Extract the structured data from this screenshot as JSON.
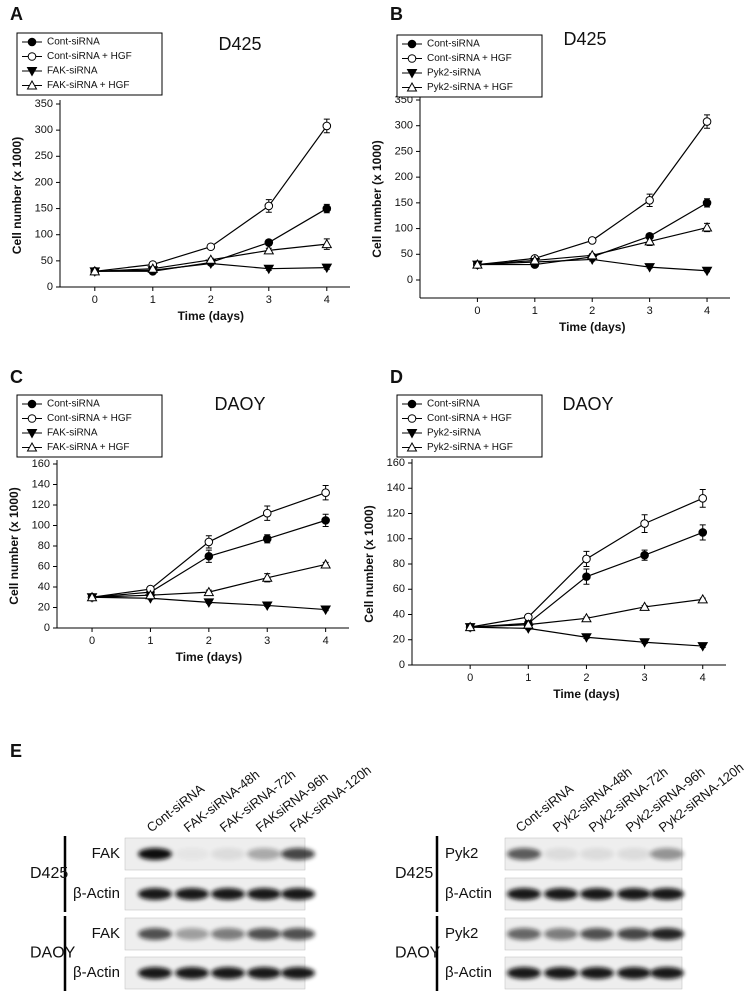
{
  "chart_data": [
    {
      "type": "line",
      "panel": "A",
      "title": "D425",
      "x_label": "Time (days)",
      "y_label": "Cell number (x 1000)",
      "x": [
        0,
        1,
        2,
        3,
        4
      ],
      "xlim": [
        -0.6,
        4.4
      ],
      "xticks": [
        0,
        1,
        2,
        3,
        4
      ],
      "ylim": [
        0,
        350
      ],
      "yticks": [
        0,
        50,
        100,
        150,
        200,
        250,
        300,
        350
      ],
      "legend": "upper left",
      "series": [
        {
          "name": "Cont-siRNA",
          "marker": "filled-circle",
          "color": "#000000",
          "values": [
            30,
            30,
            47,
            85,
            150
          ],
          "errors": [
            2,
            2,
            3,
            5,
            8
          ]
        },
        {
          "name": "Cont-siRNA + HGF",
          "marker": "open-circle",
          "color": "#000000",
          "values": [
            30,
            43,
            77,
            155,
            308
          ],
          "errors": [
            2,
            3,
            3,
            12,
            13
          ]
        },
        {
          "name": "FAK-siRNA",
          "marker": "filled-triangle-down",
          "color": "#000000",
          "values": [
            30,
            32,
            45,
            35,
            37
          ],
          "errors": [
            2,
            2,
            3,
            3,
            3
          ]
        },
        {
          "name": "FAK-siRNA + HGF",
          "marker": "open-triangle-up",
          "color": "#000000",
          "values": [
            30,
            35,
            52,
            70,
            82
          ],
          "errors": [
            2,
            2,
            3,
            4,
            10
          ]
        }
      ]
    },
    {
      "type": "line",
      "panel": "B",
      "title": "D425",
      "x_label": "Time (days)",
      "y_label": "Cell number (x 1000)",
      "x": [
        0,
        1,
        2,
        3,
        4
      ],
      "xlim": [
        -1,
        4.4
      ],
      "xticks": [
        0,
        1,
        2,
        3,
        4
      ],
      "ylim": [
        -35,
        350
      ],
      "yticks": [
        0,
        50,
        100,
        150,
        200,
        250,
        300,
        350
      ],
      "legend": "upper left",
      "series": [
        {
          "name": "Cont-siRNA",
          "marker": "filled-circle",
          "color": "#000000",
          "values": [
            30,
            30,
            45,
            85,
            150
          ],
          "errors": [
            2,
            2,
            3,
            5,
            8
          ]
        },
        {
          "name": "Cont-siRNA + HGF",
          "marker": "open-circle",
          "color": "#000000",
          "values": [
            30,
            42,
            77,
            155,
            308
          ],
          "errors": [
            2,
            3,
            3,
            12,
            13
          ]
        },
        {
          "name": "Pyk2-siRNA",
          "marker": "filled-triangle-down",
          "color": "#000000",
          "values": [
            30,
            35,
            40,
            25,
            18
          ],
          "errors": [
            2,
            2,
            3,
            2,
            2
          ]
        },
        {
          "name": "Pyk2-siRNA + HGF",
          "marker": "open-triangle-up",
          "color": "#000000",
          "values": [
            30,
            38,
            48,
            75,
            102
          ],
          "errors": [
            2,
            3,
            3,
            8,
            8
          ]
        }
      ]
    },
    {
      "type": "line",
      "panel": "C",
      "title": "DAOY",
      "x_label": "Time (days)",
      "y_label": "Cell number (x 1000)",
      "x": [
        0,
        1,
        2,
        3,
        4
      ],
      "xlim": [
        -0.6,
        4.4
      ],
      "xticks": [
        0,
        1,
        2,
        3,
        4
      ],
      "ylim": [
        0,
        160
      ],
      "yticks": [
        0,
        20,
        40,
        60,
        80,
        100,
        120,
        140,
        160
      ],
      "legend": "upper left",
      "series": [
        {
          "name": "Cont-siRNA",
          "marker": "filled-circle",
          "color": "#000000",
          "values": [
            30,
            35,
            70,
            87,
            105
          ],
          "errors": [
            1,
            2,
            6,
            4,
            6
          ]
        },
        {
          "name": "Cont-siRNA + HGF",
          "marker": "open-circle",
          "color": "#000000",
          "values": [
            30,
            38,
            84,
            112,
            132
          ],
          "errors": [
            1,
            2,
            6,
            7,
            7
          ]
        },
        {
          "name": "FAK-siRNA",
          "marker": "filled-triangle-down",
          "color": "#000000",
          "values": [
            30,
            29,
            25,
            22,
            18
          ],
          "errors": [
            1,
            1,
            1,
            1,
            1
          ]
        },
        {
          "name": "FAK-siRNA + HGF",
          "marker": "open-triangle-up",
          "color": "#000000",
          "values": [
            30,
            32,
            35,
            49,
            62
          ],
          "errors": [
            1,
            2,
            2,
            4,
            2
          ]
        }
      ]
    },
    {
      "type": "line",
      "panel": "D",
      "title": "DAOY",
      "x_label": "Time (days)",
      "y_label": "Cell number (x 1000)",
      "x": [
        0,
        1,
        2,
        3,
        4
      ],
      "xlim": [
        -1,
        4.4
      ],
      "xticks": [
        0,
        1,
        2,
        3,
        4
      ],
      "ylim": [
        0,
        160
      ],
      "yticks": [
        0,
        20,
        40,
        60,
        80,
        100,
        120,
        140,
        160
      ],
      "legend": "upper left",
      "series": [
        {
          "name": "Cont-siRNA",
          "marker": "filled-circle",
          "color": "#000000",
          "values": [
            30,
            33,
            70,
            87,
            105
          ],
          "errors": [
            1,
            2,
            6,
            4,
            6
          ]
        },
        {
          "name": "Cont-siRNA + HGF",
          "marker": "open-circle",
          "color": "#000000",
          "values": [
            30,
            38,
            84,
            112,
            132
          ],
          "errors": [
            1,
            2,
            6,
            7,
            7
          ]
        },
        {
          "name": "Pyk2-siRNA",
          "marker": "filled-triangle-down",
          "color": "#000000",
          "values": [
            30,
            29,
            22,
            18,
            15
          ],
          "errors": [
            1,
            1,
            1,
            1,
            1
          ]
        },
        {
          "name": "Pyk2-siRNA + HGF",
          "marker": "open-triangle-up",
          "color": "#000000",
          "values": [
            30,
            32,
            37,
            46,
            52
          ],
          "errors": [
            1,
            1,
            1,
            1,
            1
          ]
        }
      ]
    }
  ],
  "blot_panel": {
    "label": "E",
    "blots": [
      {
        "lanes": [
          "Cont-siRNA",
          "FAK-siRNA-48h",
          "FAK-siRNA-72h",
          "FAKsiRNA-96h",
          "FAK-siRNA-120h"
        ],
        "groups": [
          {
            "cell_line": "D425",
            "rows": [
              "FAK",
              "β-Actin"
            ]
          },
          {
            "cell_line": "DAOY",
            "rows": [
              "FAK",
              "β-Actin"
            ]
          }
        ]
      },
      {
        "lanes": [
          "Cont-siRNA",
          "Pyk2-siRNA-48h",
          "Pyk2-siRNA-72h",
          "Pyk2-siRNA-96h",
          "Pyk2-siRNA-120h"
        ],
        "groups": [
          {
            "cell_line": "D425",
            "rows": [
              "Pyk2",
              "β-Actin"
            ]
          },
          {
            "cell_line": "DAOY",
            "rows": [
              "Pyk2",
              "β-Actin"
            ]
          }
        ]
      }
    ]
  }
}
